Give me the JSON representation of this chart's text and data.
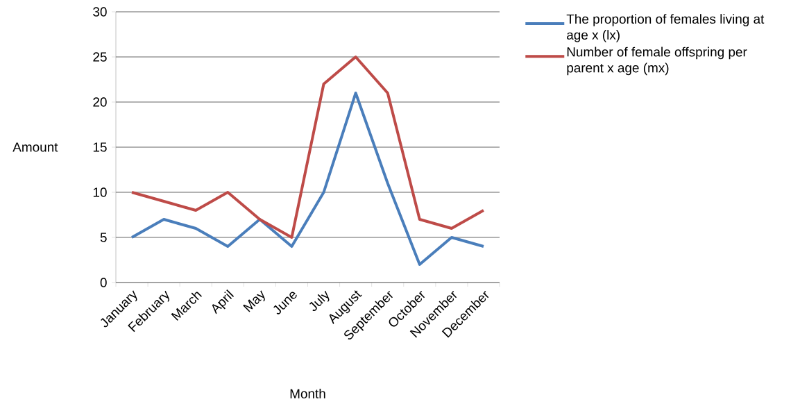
{
  "chart_data": {
    "type": "line",
    "xlabel": "Month",
    "ylabel": "Amount",
    "categories": [
      "January",
      "February",
      "March",
      "April",
      "May",
      "June",
      "July",
      "August",
      "September",
      "October",
      "November",
      "December"
    ],
    "series": [
      {
        "name": "The proportion of females living at age x (lx)",
        "color": "#4a7ebb",
        "values": [
          5,
          7,
          6,
          4,
          7,
          4,
          10,
          21,
          11,
          2,
          5,
          4
        ]
      },
      {
        "name": "Number of female offspring per parent x age (mx)",
        "color": "#be4b48",
        "values": [
          10,
          9,
          8,
          10,
          7,
          5,
          22,
          25,
          21,
          7,
          6,
          8
        ]
      }
    ],
    "ylim": [
      0,
      30
    ],
    "yticks": [
      0,
      5,
      10,
      15,
      20,
      25,
      30
    ],
    "grid": "y",
    "legend": "right",
    "marker": "none",
    "line_style": "solid"
  }
}
